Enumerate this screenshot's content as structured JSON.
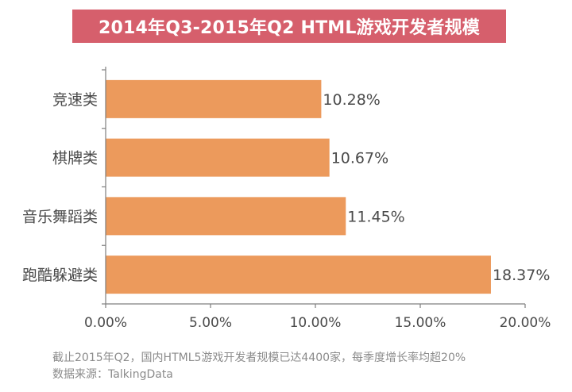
{
  "chart_data": {
    "type": "bar",
    "orientation": "horizontal",
    "title": "2014年Q3-2015年Q2 HTML游戏开发者规模",
    "categories": [
      "竞速类",
      "棋牌类",
      "音乐舞蹈类",
      "跑酷躲避类"
    ],
    "values": [
      10.28,
      10.67,
      11.45,
      18.37
    ],
    "data_labels": [
      "10.28%",
      "10.67%",
      "11.45%",
      "18.37%"
    ],
    "xlim": [
      0,
      20
    ],
    "x_ticks": [
      0,
      5,
      10,
      15,
      20
    ],
    "x_tick_labels": [
      "0.00%",
      "5.00%",
      "10.00%",
      "15.00%",
      "20.00%"
    ],
    "grid": false,
    "legend": "none",
    "bar_color": "#ec9a5c",
    "title_bg_color": "#d65f6c"
  },
  "footer": {
    "note": "截止2015年Q2，国内HTML5游戏开发者规模已达4400家，每季度增长率均超20%",
    "source": "数据来源：TalkingData"
  }
}
